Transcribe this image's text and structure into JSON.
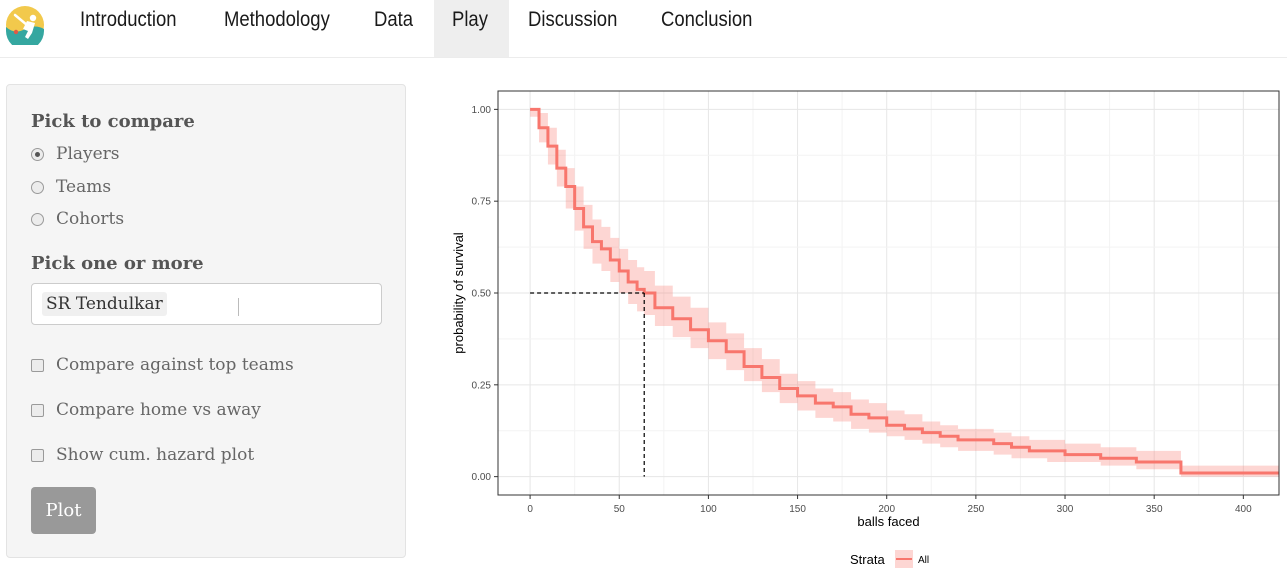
{
  "nav": {
    "logo": "cricket-logo",
    "items": [
      {
        "label": "Introduction",
        "active": false
      },
      {
        "label": "Methodology",
        "active": false
      },
      {
        "label": "Data",
        "active": false
      },
      {
        "label": "Play",
        "active": true
      },
      {
        "label": "Discussion",
        "active": false
      },
      {
        "label": "Conclusion",
        "active": false
      }
    ]
  },
  "sidebar": {
    "compare_heading": "Pick to compare",
    "compare_options": [
      {
        "label": "Players",
        "selected": true
      },
      {
        "label": "Teams",
        "selected": false
      },
      {
        "label": "Cohorts",
        "selected": false
      }
    ],
    "pick_heading": "Pick one or more",
    "selected_items": [
      "SR Tendulkar"
    ],
    "checkboxes": [
      {
        "label": "Compare against top teams",
        "checked": false
      },
      {
        "label": "Compare home vs away",
        "checked": false
      },
      {
        "label": "Show cum. hazard plot",
        "checked": false
      }
    ],
    "plot_button": "Plot"
  },
  "chart_data": {
    "type": "line",
    "title": "",
    "xlabel": "balls faced",
    "ylabel": "probability of survival",
    "xlim": [
      -18,
      420
    ],
    "ylim": [
      -0.05,
      1.05
    ],
    "x_ticks": [
      0,
      50,
      100,
      150,
      200,
      250,
      300,
      350,
      400
    ],
    "y_ticks": [
      "0.00",
      "0.25",
      "0.50",
      "0.75",
      "1.00"
    ],
    "grid": true,
    "legend": {
      "title": "Strata",
      "position": "bottom",
      "entries": [
        "All"
      ]
    },
    "color": "#f8766d",
    "band_color": "#f8766d",
    "median": {
      "x": 64,
      "y": 0.5
    },
    "series": [
      {
        "name": "All",
        "x": [
          0,
          5,
          10,
          15,
          20,
          25,
          30,
          35,
          40,
          45,
          50,
          55,
          60,
          64,
          70,
          80,
          90,
          100,
          110,
          120,
          130,
          140,
          150,
          160,
          170,
          180,
          190,
          200,
          210,
          220,
          230,
          240,
          250,
          260,
          270,
          280,
          290,
          300,
          320,
          340,
          365,
          380,
          400,
          420
        ],
        "y": [
          1.0,
          0.95,
          0.9,
          0.84,
          0.79,
          0.73,
          0.68,
          0.64,
          0.62,
          0.59,
          0.56,
          0.53,
          0.51,
          0.5,
          0.46,
          0.43,
          0.4,
          0.37,
          0.34,
          0.3,
          0.27,
          0.24,
          0.22,
          0.2,
          0.19,
          0.17,
          0.16,
          0.14,
          0.13,
          0.12,
          0.11,
          0.1,
          0.1,
          0.09,
          0.08,
          0.07,
          0.07,
          0.06,
          0.05,
          0.04,
          0.01,
          0.01,
          0.01,
          0.01
        ],
        "lower": [
          0.98,
          0.91,
          0.85,
          0.79,
          0.73,
          0.67,
          0.62,
          0.58,
          0.56,
          0.53,
          0.5,
          0.47,
          0.45,
          0.44,
          0.41,
          0.38,
          0.35,
          0.32,
          0.29,
          0.26,
          0.23,
          0.2,
          0.18,
          0.16,
          0.15,
          0.13,
          0.12,
          0.11,
          0.1,
          0.09,
          0.08,
          0.07,
          0.07,
          0.06,
          0.05,
          0.05,
          0.04,
          0.04,
          0.03,
          0.02,
          0.0,
          0.0,
          0.0,
          0.0
        ],
        "upper": [
          1.0,
          0.99,
          0.95,
          0.89,
          0.84,
          0.79,
          0.74,
          0.7,
          0.68,
          0.65,
          0.62,
          0.59,
          0.57,
          0.56,
          0.52,
          0.49,
          0.46,
          0.42,
          0.39,
          0.35,
          0.32,
          0.28,
          0.26,
          0.24,
          0.23,
          0.21,
          0.2,
          0.18,
          0.17,
          0.15,
          0.14,
          0.13,
          0.13,
          0.12,
          0.11,
          0.1,
          0.1,
          0.09,
          0.08,
          0.07,
          0.03,
          0.03,
          0.03,
          0.03
        ]
      }
    ]
  }
}
